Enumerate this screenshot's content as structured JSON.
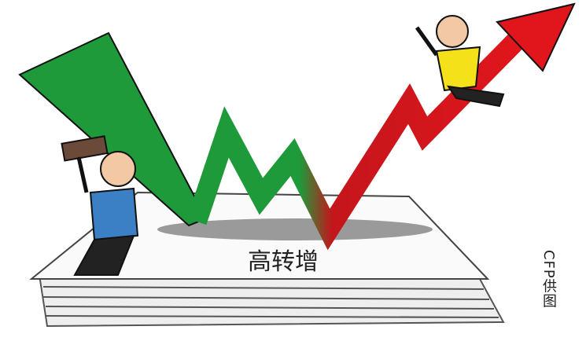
{
  "illustration": {
    "caption": "高转增",
    "credit": "CFP供图"
  }
}
